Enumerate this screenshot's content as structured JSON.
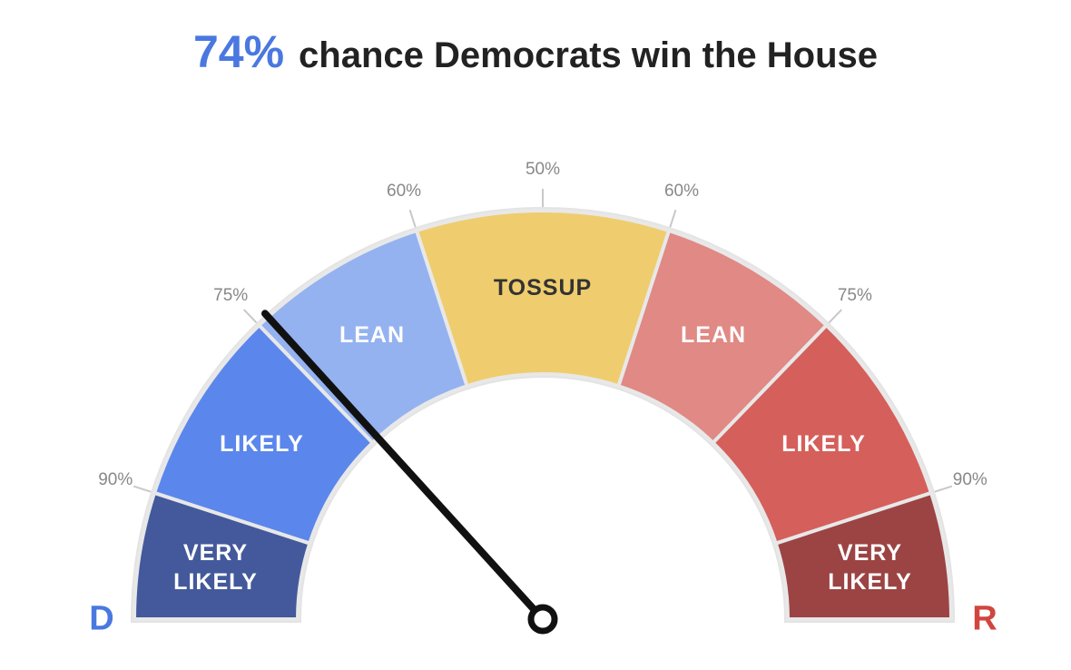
{
  "chart_data": {
    "type": "gauge",
    "title": "chance Democrats win the House",
    "ylim": [
      50,
      100
    ],
    "yticks": [
      {
        "value": 50,
        "label": "50%"
      },
      {
        "value": 60,
        "label": "60%"
      },
      {
        "value": 75,
        "label": "75%"
      },
      {
        "value": 90,
        "label": "90%"
      }
    ],
    "center": {
      "name": "TOSSUP",
      "color": "#efcd6e"
    },
    "sides": [
      {
        "label": "D",
        "color": "#4a78e0",
        "value": 74,
        "value_label": "74%",
        "segments": [
          {
            "name": "LEAN",
            "color": "#94b2f0"
          },
          {
            "name": "LIKELY",
            "color": "#5b87ec"
          },
          {
            "name": "VERY LIKELY",
            "color": "#43599b"
          }
        ]
      },
      {
        "label": "R",
        "color": "#d0463f",
        "segments": [
          {
            "name": "LEAN",
            "color": "#e08985"
          },
          {
            "name": "LIKELY",
            "color": "#d55f5b"
          },
          {
            "name": "VERY LIKELY",
            "color": "#9b4443"
          }
        ]
      }
    ]
  }
}
